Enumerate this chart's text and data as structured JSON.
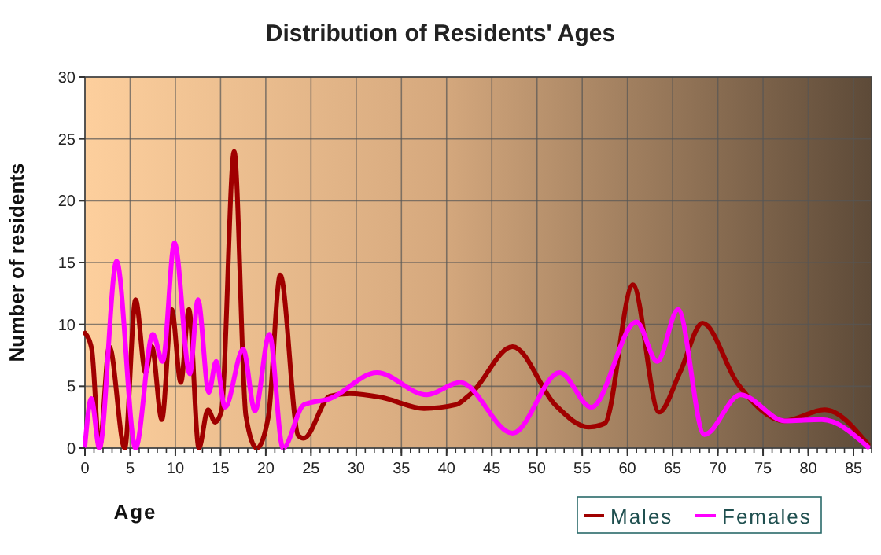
{
  "chart_data": {
    "type": "line",
    "title": "Distribution of Residents' Ages",
    "xlabel": "Age",
    "ylabel": "Number of residents",
    "xlim": [
      0,
      87
    ],
    "xticks": [
      0,
      5,
      10,
      15,
      20,
      25,
      30,
      35,
      40,
      45,
      50,
      55,
      60,
      65,
      70,
      75,
      80,
      85
    ],
    "ylim": [
      0,
      30
    ],
    "yticks": [
      0,
      5,
      10,
      15,
      20,
      25,
      30
    ],
    "grid": true,
    "legend": "bottom right",
    "marker": "none",
    "line_style": "solid",
    "series": [
      {
        "name": "Males",
        "color": "#a00000",
        "x": [
          0,
          0.75,
          1.6,
          2.7,
          4.4,
          5.6,
          6.7,
          7.4,
          8.5,
          9.6,
          10.6,
          11.5,
          12.6,
          13.6,
          14.4,
          15.1,
          16.5,
          17.8,
          19,
          20.3,
          21.6,
          23.6,
          24.2,
          27.1,
          29.3,
          32.8,
          37.5,
          41,
          42.7,
          47.3,
          52,
          55.7,
          57.5,
          60.6,
          63.5,
          65.8,
          68.3,
          72.2,
          77.4,
          81.8,
          86.6
        ],
        "values": [
          9.3,
          8,
          0,
          8.2,
          0,
          12,
          6.1,
          8.2,
          2.3,
          11.2,
          5.3,
          11.2,
          0,
          3.1,
          2.1,
          3,
          24,
          2.6,
          0,
          2.6,
          14,
          1,
          0.8,
          4.2,
          4.4,
          4.1,
          3.2,
          3.5,
          4.4,
          8.2,
          3.5,
          1.7,
          2,
          13.2,
          2.9,
          6.1,
          10.1,
          5.2,
          2.2,
          3.1,
          0.3
        ]
      },
      {
        "name": "Females",
        "color": "#ff00ff",
        "x": [
          0,
          0.7,
          1.6,
          3.5,
          5.6,
          7.5,
          8.6,
          9.9,
          11.6,
          12.5,
          13.7,
          14.5,
          15.5,
          17.5,
          18.8,
          20.4,
          21.9,
          24.2,
          27.1,
          32.3,
          37.8,
          41.5,
          47.3,
          52.5,
          56,
          61,
          63.3,
          65.6,
          68.5,
          72.5,
          77.4,
          81.5,
          86.6
        ],
        "values": [
          0.2,
          4,
          0,
          15.1,
          0,
          9.2,
          7,
          16.6,
          6,
          12,
          4.5,
          7,
          3.3,
          8,
          3,
          9.2,
          0,
          3.5,
          4,
          6.1,
          4.3,
          5.3,
          1.2,
          6.1,
          3.3,
          10.2,
          7,
          11.2,
          1.1,
          4.3,
          2.2,
          2.3,
          0.1
        ]
      }
    ]
  }
}
